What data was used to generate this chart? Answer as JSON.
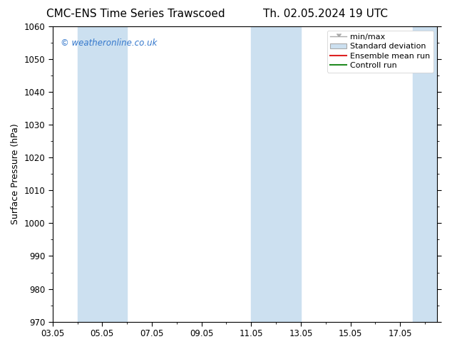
{
  "title_left": "CMC-ENS Time Series Trawscoed",
  "title_right": "Th. 02.05.2024 19 UTC",
  "ylabel": "Surface Pressure (hPa)",
  "watermark": "© weatheronline.co.uk",
  "ylim": [
    970,
    1060
  ],
  "yticks": [
    970,
    980,
    990,
    1000,
    1010,
    1020,
    1030,
    1040,
    1050,
    1060
  ],
  "xlim_start": 3.0,
  "xlim_end": 18.5,
  "xtick_labels": [
    "03.05",
    "05.05",
    "07.05",
    "09.05",
    "11.05",
    "13.05",
    "15.05",
    "17.05"
  ],
  "xtick_positions": [
    3,
    5,
    7,
    9,
    11,
    13,
    15,
    17
  ],
  "shaded_bands": [
    {
      "x_start": 4.0,
      "x_end": 6.0
    },
    {
      "x_start": 11.0,
      "x_end": 12.0
    },
    {
      "x_start": 12.0,
      "x_end": 13.0
    },
    {
      "x_start": 17.5,
      "x_end": 18.5
    }
  ],
  "shade_color": "#cce0f0",
  "bg_color": "#ffffff",
  "title_fontsize": 11,
  "label_fontsize": 9,
  "tick_fontsize": 8.5,
  "watermark_color": "#3377cc",
  "legend_fontsize": 8,
  "grid_color": "#dddddd"
}
